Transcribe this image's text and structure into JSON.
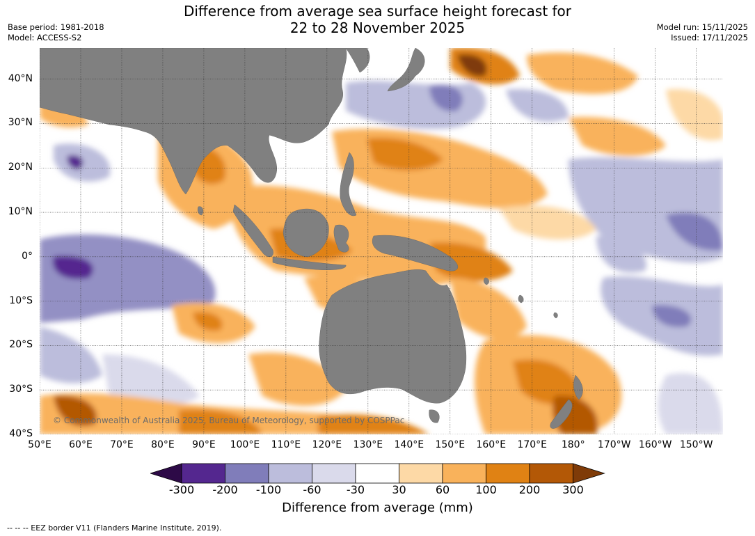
{
  "title": {
    "line1": "Difference from average sea surface height forecast for",
    "line2": "22 to 28 November 2025"
  },
  "meta_left": {
    "base_period": "Base period: 1981-2018",
    "model": "Model: ACCESS-S2"
  },
  "meta_right": {
    "model_run": "Model run: 15/11/2025",
    "issued": "Issued: 17/11/2025"
  },
  "map": {
    "lat_labels": [
      "40°N",
      "30°N",
      "20°N",
      "10°N",
      "0°",
      "10°S",
      "20°S",
      "30°S",
      "40°S"
    ],
    "lon_labels": [
      "50°E",
      "60°E",
      "70°E",
      "80°E",
      "90°E",
      "100°E",
      "110°E",
      "120°E",
      "130°E",
      "140°E",
      "150°E",
      "160°E",
      "170°E",
      "180°",
      "170°W",
      "160°W",
      "150°W"
    ],
    "lat_range": [
      47,
      -40
    ],
    "lon_range": [
      50,
      216.5
    ],
    "land_color": "#808080",
    "ocean_color": "#ffffff",
    "copyright": "© Commonwealth of Australia 2025, Bureau of Meteorology, supported by COSPPac"
  },
  "colorbar": {
    "label": "Difference from average (mm)",
    "ticks": [
      "-300",
      "-200",
      "-100",
      "-60",
      "-30",
      "30",
      "60",
      "100",
      "200",
      "300"
    ],
    "colors": [
      "#2d0a47",
      "#54278f",
      "#807dba",
      "#bcbddc",
      "#dadaeb",
      "#ffffff",
      "#fdd9a6",
      "#f9b25b",
      "#e08214",
      "#b35806",
      "#7f3b08"
    ]
  },
  "footnote": "--  --  -- EEZ border V11 (Flanders Marine Institute, 2019)."
}
